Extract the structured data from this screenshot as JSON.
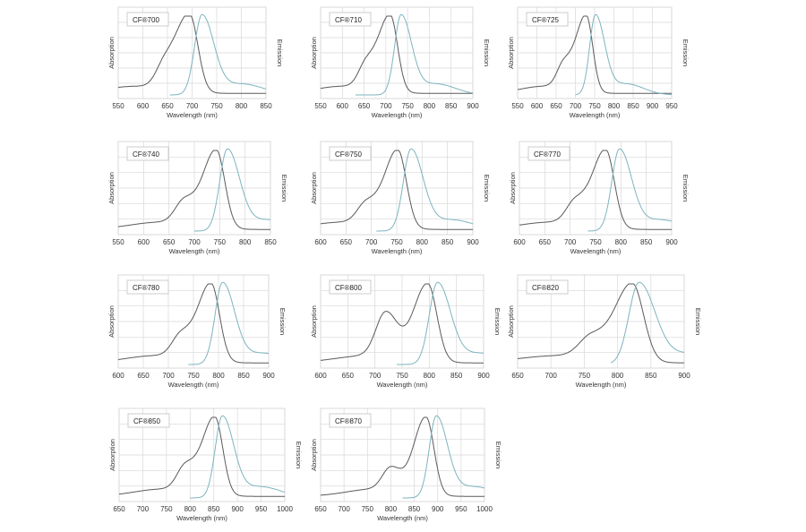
{
  "chart_data": [
    {
      "type": "line",
      "title": "CF®700",
      "xlabel": "Wavelength (nm)",
      "ylabel_left": "Absorption",
      "ylabel_right": "Emission",
      "xlim": [
        550,
        850
      ],
      "xticks": [
        550,
        600,
        650,
        700,
        750,
        800,
        850
      ],
      "series": [
        {
          "name": "Absorption",
          "peak": 695,
          "shoulder": 645,
          "shoulder_rel": 0.3
        },
        {
          "name": "Emission",
          "peak": 720,
          "start": 655
        }
      ]
    },
    {
      "type": "line",
      "title": "CF®710",
      "xlabel": "Wavelength (nm)",
      "ylabel_left": "Absorption",
      "ylabel_right": "Emission",
      "xlim": [
        550,
        900
      ],
      "xticks": [
        550,
        600,
        650,
        700,
        750,
        800,
        850,
        900
      ],
      "series": [
        {
          "name": "Absorption",
          "peak": 710,
          "shoulder": 655,
          "shoulder_rel": 0.3
        },
        {
          "name": "Emission",
          "peak": 735,
          "start": 630
        }
      ]
    },
    {
      "type": "line",
      "title": "CF®725",
      "xlabel": "Wavelength (nm)",
      "ylabel_left": "Absorption",
      "ylabel_right": "Emission",
      "xlim": [
        550,
        950
      ],
      "xticks": [
        550,
        600,
        650,
        700,
        750,
        800,
        850,
        900,
        950
      ],
      "series": [
        {
          "name": "Absorption",
          "peak": 728,
          "shoulder": 670,
          "shoulder_rel": 0.3
        },
        {
          "name": "Emission",
          "peak": 752,
          "start": 700
        }
      ]
    },
    {
      "type": "line",
      "title": "CF®740",
      "xlabel": "Wavelength (nm)",
      "ylabel_left": "Absorption",
      "ylabel_right": "Emission",
      "xlim": [
        550,
        850
      ],
      "xticks": [
        550,
        600,
        650,
        700,
        750,
        800,
        850
      ],
      "series": [
        {
          "name": "Absorption",
          "peak": 743,
          "shoulder": 680,
          "shoulder_rel": 0.28
        },
        {
          "name": "Emission",
          "peak": 765,
          "start": 700
        }
      ]
    },
    {
      "type": "line",
      "title": "CF®750",
      "xlabel": "Wavelength (nm)",
      "ylabel_left": "Absorption",
      "ylabel_right": "Emission",
      "xlim": [
        600,
        900
      ],
      "xticks": [
        600,
        650,
        700,
        750,
        800,
        850,
        900
      ],
      "series": [
        {
          "name": "Absorption",
          "peak": 752,
          "shoulder": 690,
          "shoulder_rel": 0.25
        },
        {
          "name": "Emission",
          "peak": 778,
          "start": 710
        }
      ]
    },
    {
      "type": "line",
      "title": "CF®770",
      "xlabel": "Wavelength (nm)",
      "ylabel_left": "Absorption",
      "ylabel_right": "Emission",
      "xlim": [
        600,
        900
      ],
      "xticks": [
        600,
        650,
        700,
        750,
        800,
        850,
        900
      ],
      "series": [
        {
          "name": "Absorption",
          "peak": 770,
          "shoulder": 710,
          "shoulder_rel": 0.27
        },
        {
          "name": "Emission",
          "peak": 797,
          "start": 735
        }
      ]
    },
    {
      "type": "line",
      "title": "CF®780",
      "xlabel": "Wavelength (nm)",
      "ylabel_left": "Absorption",
      "ylabel_right": "Emission",
      "xlim": [
        600,
        900
      ],
      "xticks": [
        600,
        650,
        700,
        750,
        800,
        850,
        900
      ],
      "series": [
        {
          "name": "Absorption",
          "peak": 785,
          "shoulder": 725,
          "shoulder_rel": 0.27
        },
        {
          "name": "Emission",
          "peak": 808,
          "start": 740
        }
      ]
    },
    {
      "type": "line",
      "title": "CF®800",
      "xlabel": "Wavelength (nm)",
      "ylabel_left": "Absorption",
      "ylabel_right": "Emission",
      "xlim": [
        600,
        900
      ],
      "xticks": [
        600,
        650,
        700,
        750,
        800,
        850,
        900
      ],
      "series": [
        {
          "name": "Absorption",
          "peak": 797,
          "shoulder": 720,
          "shoulder_rel": 0.55
        },
        {
          "name": "Emission",
          "peak": 815,
          "start": 740
        }
      ]
    },
    {
      "type": "line",
      "title": "CF®820",
      "xlabel": "Wavelength (nm)",
      "ylabel_left": "Absorption",
      "ylabel_right": "Emission",
      "xlim": [
        650,
        900
      ],
      "xticks": [
        650,
        700,
        750,
        800,
        850,
        900
      ],
      "series": [
        {
          "name": "Absorption",
          "peak": 822,
          "shoulder": 760,
          "shoulder_rel": 0.25
        },
        {
          "name": "Emission",
          "peak": 832,
          "start": 790
        }
      ]
    },
    {
      "type": "line",
      "title": "CF®850",
      "xlabel": "Wavelength (nm)",
      "ylabel_left": "Absorption",
      "ylabel_right": "Emission",
      "xlim": [
        650,
        1000
      ],
      "xticks": [
        650,
        700,
        750,
        800,
        850,
        900,
        950,
        1000
      ],
      "series": [
        {
          "name": "Absorption",
          "peak": 852,
          "shoulder": 790,
          "shoulder_rel": 0.3
        },
        {
          "name": "Emission",
          "peak": 868,
          "start": 800
        }
      ]
    },
    {
      "type": "line",
      "title": "CF®870",
      "xlabel": "Wavelength (nm)",
      "ylabel_left": "Absorption",
      "ylabel_right": "Emission",
      "xlim": [
        650,
        1000
      ],
      "xticks": [
        650,
        700,
        750,
        800,
        850,
        900,
        950,
        1000
      ],
      "series": [
        {
          "name": "Absorption",
          "peak": 875,
          "shoulder": 800,
          "shoulder_rel": 0.28
        },
        {
          "name": "Emission",
          "peak": 897,
          "start": 825
        }
      ]
    }
  ],
  "colors": {
    "absorption": "#5a5a5a",
    "emission": "#7db4bf",
    "grid": "#d8d8d8"
  }
}
